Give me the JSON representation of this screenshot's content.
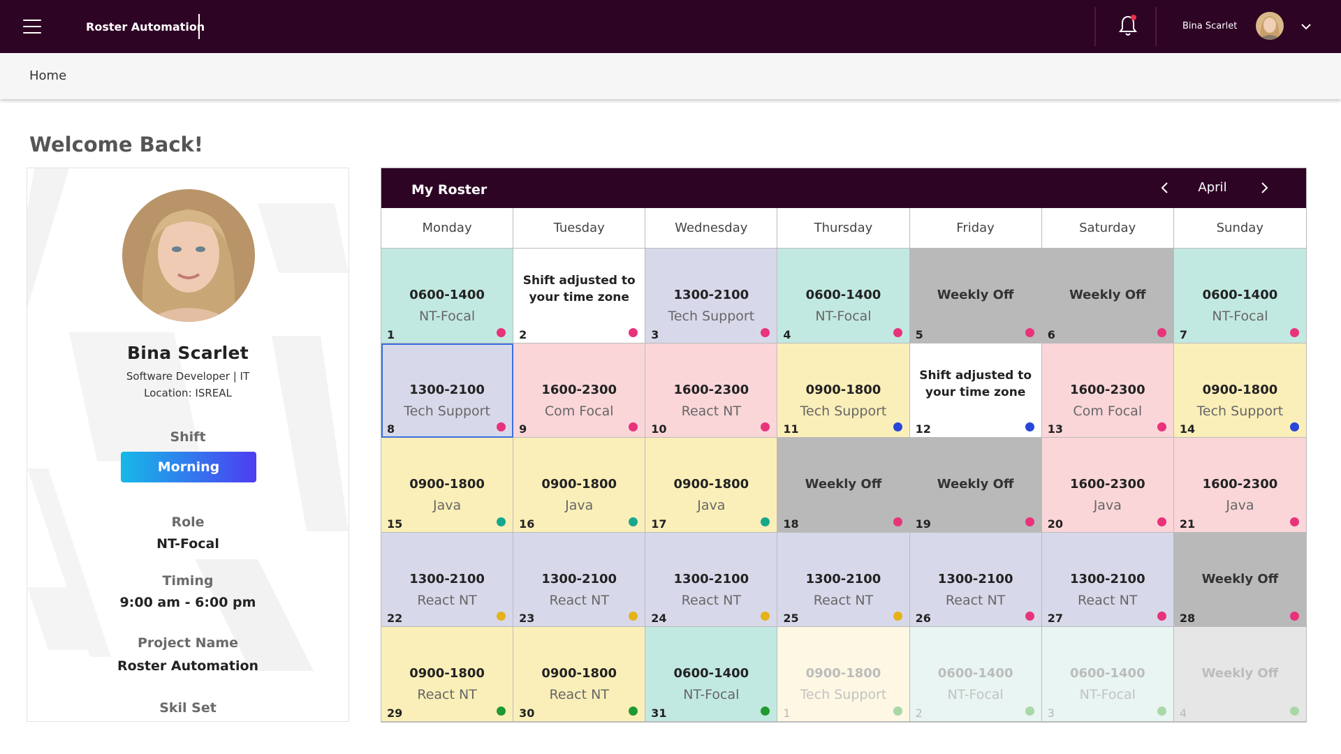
{
  "header": {
    "app_title": "Roster Automation",
    "username": "Bina Scarlet",
    "icons": [
      "menu-icon",
      "bell-icon",
      "chevron-down-icon"
    ],
    "notification_dot_color": "#e8324a"
  },
  "breadcrumb": {
    "home": "Home"
  },
  "welcome": "Welcome Back!",
  "profile": {
    "name": "Bina Scarlet",
    "designation": "Software Developer | IT",
    "location": "Location: ISREAL",
    "shift_label": "Shift",
    "shift_value": "Morning",
    "role_label": "Role",
    "role_value": "NT-Focal",
    "timing_label": "Timing",
    "timing_value": "9:00 am - 6:00 pm",
    "project_label": "Project Name",
    "project_value": "Roster Automation",
    "skill_label": "Skil Set"
  },
  "roster": {
    "title": "My Roster",
    "month": "April",
    "days": [
      "Monday",
      "Tuesday",
      "Wednesday",
      "Thursday",
      "Friday",
      "Saturday",
      "Sunday"
    ],
    "cells": [
      {
        "day": "1",
        "kind": "shift",
        "time": "0600-1400",
        "role": "NT-Focal",
        "bg": "#c2e9e1",
        "dot": "#e8337a"
      },
      {
        "day": "2",
        "kind": "note",
        "note": "Shift adjusted to your time zone",
        "bg": "#ffffff",
        "dot": "#e8337a"
      },
      {
        "day": "3",
        "kind": "shift",
        "time": "1300-2100",
        "role": "Tech Support",
        "bg": "#d7d9ea",
        "dot": "#e8337a"
      },
      {
        "day": "4",
        "kind": "shift",
        "time": "0600-1400",
        "role": "NT-Focal",
        "bg": "#c2e9e1",
        "dot": "#e8337a"
      },
      {
        "day": "5",
        "kind": "off",
        "label": "Weekly Off",
        "bg": "#b9b9b9",
        "dot": "#e8337a"
      },
      {
        "day": "6",
        "kind": "off",
        "label": "Weekly Off",
        "bg": "#b9b9b9",
        "dot": "#e8337a"
      },
      {
        "day": "7",
        "kind": "shift",
        "time": "0600-1400",
        "role": "NT-Focal",
        "bg": "#c2e9e1",
        "dot": "#e8337a"
      },
      {
        "day": "8",
        "kind": "shift",
        "time": "1300-2100",
        "role": "Tech Support",
        "bg": "#d7d9ea",
        "dot": "#e8337a",
        "selected": true
      },
      {
        "day": "9",
        "kind": "shift",
        "time": "1600-2300",
        "role": "Com Focal",
        "bg": "#fad6d9",
        "dot": "#e8337a"
      },
      {
        "day": "10",
        "kind": "shift",
        "time": "1600-2300",
        "role": "React NT",
        "bg": "#fad6d9",
        "dot": "#e8337a"
      },
      {
        "day": "11",
        "kind": "shift",
        "time": "0900-1800",
        "role": "Tech Support",
        "bg": "#fbefb9",
        "dot": "#2846d8"
      },
      {
        "day": "12",
        "kind": "note",
        "note": "Shift adjusted to your time zone",
        "bg": "#ffffff",
        "dot": "#2846d8"
      },
      {
        "day": "13",
        "kind": "shift",
        "time": "1600-2300",
        "role": "Com Focal",
        "bg": "#fad6d9",
        "dot": "#e8337a"
      },
      {
        "day": "14",
        "kind": "shift",
        "time": "0900-1800",
        "role": "Tech Support",
        "bg": "#fbefb9",
        "dot": "#2846d8"
      },
      {
        "day": "15",
        "kind": "shift",
        "time": "0900-1800",
        "role": "Java",
        "bg": "#fbefb9",
        "dot": "#17a88c"
      },
      {
        "day": "16",
        "kind": "shift",
        "time": "0900-1800",
        "role": "Java",
        "bg": "#fbefb9",
        "dot": "#17a88c"
      },
      {
        "day": "17",
        "kind": "shift",
        "time": "0900-1800",
        "role": "Java",
        "bg": "#fbefb9",
        "dot": "#17a88c"
      },
      {
        "day": "18",
        "kind": "off",
        "label": "Weekly Off",
        "bg": "#b9b9b9",
        "dot": "#e8337a"
      },
      {
        "day": "19",
        "kind": "off",
        "label": "Weekly Off",
        "bg": "#b9b9b9",
        "dot": "#e8337a"
      },
      {
        "day": "20",
        "kind": "shift",
        "time": "1600-2300",
        "role": "Java",
        "bg": "#fad6d9",
        "dot": "#e8337a"
      },
      {
        "day": "21",
        "kind": "shift",
        "time": "1600-2300",
        "role": "Java",
        "bg": "#fad6d9",
        "dot": "#e8337a"
      },
      {
        "day": "22",
        "kind": "shift",
        "time": "1300-2100",
        "role": "React NT",
        "bg": "#d7d9ea",
        "dot": "#e5b21c"
      },
      {
        "day": "23",
        "kind": "shift",
        "time": "1300-2100",
        "role": "React NT",
        "bg": "#d7d9ea",
        "dot": "#e5b21c"
      },
      {
        "day": "24",
        "kind": "shift",
        "time": "1300-2100",
        "role": "React NT",
        "bg": "#d7d9ea",
        "dot": "#e5b21c"
      },
      {
        "day": "25",
        "kind": "shift",
        "time": "1300-2100",
        "role": "React NT",
        "bg": "#d7d9ea",
        "dot": "#e5b21c"
      },
      {
        "day": "26",
        "kind": "shift",
        "time": "1300-2100",
        "role": "React NT",
        "bg": "#d7d9ea",
        "dot": "#e8337a"
      },
      {
        "day": "27",
        "kind": "shift",
        "time": "1300-2100",
        "role": "React NT",
        "bg": "#d7d9ea",
        "dot": "#e8337a"
      },
      {
        "day": "28",
        "kind": "off",
        "label": "Weekly Off",
        "bg": "#b9b9b9",
        "dot": "#e8337a"
      },
      {
        "day": "29",
        "kind": "shift",
        "time": "0900-1800",
        "role": "React NT",
        "bg": "#fbefb9",
        "dot": "#1f9a32"
      },
      {
        "day": "30",
        "kind": "shift",
        "time": "0900-1800",
        "role": "React NT",
        "bg": "#fbefb9",
        "dot": "#1f9a32"
      },
      {
        "day": "31",
        "kind": "shift",
        "time": "0600-1400",
        "role": "NT-Focal",
        "bg": "#c2e9e1",
        "dot": "#1f9a32"
      },
      {
        "day": "1",
        "kind": "shift",
        "time": "0900-1800",
        "role": "Tech Support",
        "bg": "#fdf7e3",
        "dot": "#a8d8a8",
        "faded": true
      },
      {
        "day": "2",
        "kind": "shift",
        "time": "0600-1400",
        "role": "NT-Focal",
        "bg": "#e8f5f2",
        "dot": "#a8d8a8",
        "faded": true
      },
      {
        "day": "3",
        "kind": "shift",
        "time": "0600-1400",
        "role": "NT-Focal",
        "bg": "#e8f5f2",
        "dot": "#a8d8a8",
        "faded": true
      },
      {
        "day": "4",
        "kind": "off",
        "label": "Weekly Off",
        "bg": "#e6e6e6",
        "dot": "#a8d8a8",
        "faded": true
      }
    ]
  }
}
